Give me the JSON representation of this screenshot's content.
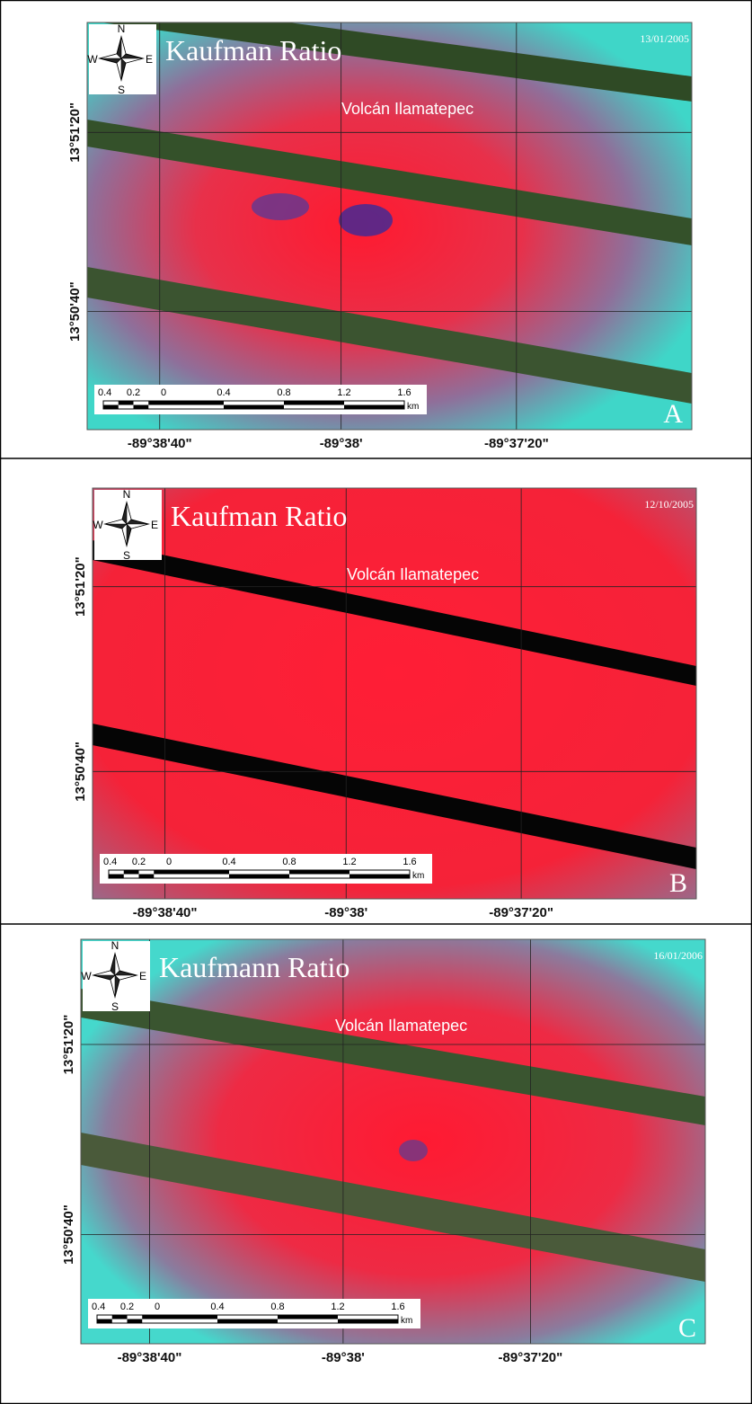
{
  "panels": [
    {
      "title": "Kaufman Ratio",
      "date": "13/01/2005",
      "volcano": "Volcán Ilamatepec",
      "compass": [
        "N",
        "E",
        "S",
        "W"
      ],
      "lat_labels": [
        "13°51'20\"",
        "13°50'40\""
      ],
      "lon_labels": [
        "-89°38'40\"",
        "-89°38'",
        "-89°37'20\""
      ],
      "scale_labels": [
        "0.4",
        "0.2",
        "0",
        "0.4",
        "0.8",
        "1.2",
        "1.6"
      ],
      "scale_unit": "km",
      "letter": "A"
    },
    {
      "title": "Kaufman Ratio",
      "date": "12/10/2005",
      "volcano": "Volcán Ilamatepec",
      "compass": [
        "N",
        "E",
        "S",
        "W"
      ],
      "lat_labels": [
        "13°51'20\"",
        "13°50'40\""
      ],
      "lon_labels": [
        "-89°38'40\"",
        "-89°38'",
        "-89°37'20\""
      ],
      "scale_labels": [
        "0.4",
        "0.2",
        "0",
        "0.4",
        "0.8",
        "1.2",
        "1.6"
      ],
      "scale_unit": "km",
      "letter": "B"
    },
    {
      "title": "Kaufmann Ratio",
      "date": "16/01/2006",
      "volcano": "Volcán Ilamatepec",
      "compass": [
        "N",
        "E",
        "S",
        "W"
      ],
      "lat_labels": [
        "13°51'20\"",
        "13°50'40\""
      ],
      "lon_labels": [
        "-89°38'40\"",
        "-89°38'",
        "-89°37'20\""
      ],
      "scale_labels": [
        "0.4",
        "0.2",
        "0",
        "0.4",
        "0.8",
        "1.2",
        "1.6"
      ],
      "scale_unit": "km",
      "letter": "C"
    }
  ]
}
